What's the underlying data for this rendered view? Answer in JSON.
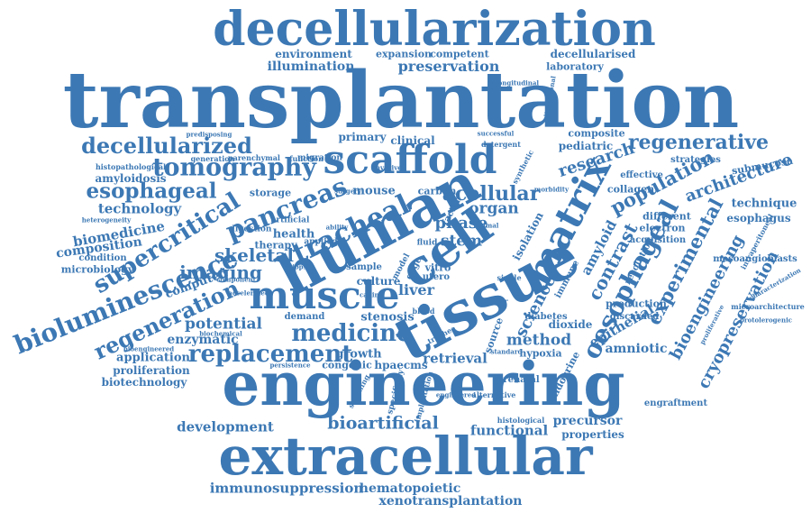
{
  "word_color": "#3c78b4",
  "words": [
    "transplantation",
    "decellularization",
    "engineering",
    "extracellular",
    "tissue",
    "human",
    "scaffold",
    "matrix",
    "cell",
    "muscle",
    "tracheal",
    "pancreas",
    "bioluminescence",
    "tomography",
    "supercritical",
    "regeneration",
    "oesophageal",
    "decellularized",
    "esophageal",
    "regenerative",
    "architecture",
    "acellular",
    "replacement",
    "medicine",
    "population",
    "experimental",
    "bioengineering",
    "cryopreservation",
    "contrast",
    "preservation",
    "illumination",
    "imaging",
    "skeletal",
    "potential",
    "enzymatic",
    "application",
    "proliferation",
    "biotechnology",
    "development",
    "bioartificial",
    "functional",
    "precursor",
    "properties",
    "immunosuppression",
    "hematopoietic",
    "xenotransplantation",
    "biomedicine",
    "technology",
    "composition",
    "microbiology",
    "research",
    "organ",
    "phase",
    "stem",
    "liver",
    "method",
    "science",
    "epithelial",
    "amniotic",
    "retrieval",
    "growth",
    "stenosis",
    "culture",
    "mouse",
    "health",
    "therapy",
    "storage",
    "computed",
    "amyloid",
    "technique",
    "esophagus",
    "submucosa",
    "collagen",
    "strategies",
    "effective",
    "pediatric",
    "composite",
    "primary",
    "clinical",
    "environment",
    "expansion",
    "competent",
    "decellularised",
    "laboratory",
    "amyloidosis",
    "histopathological",
    "source",
    "isolation",
    "different",
    "electron",
    "acquisition",
    "resolution",
    "production",
    "discarded",
    "endocrine",
    "dioxide",
    "hypoxia",
    "prenatal",
    "engraftment",
    "mesoangioblasts",
    "intraperitoneal",
    "microarchitecture",
    "characterization",
    "protolerogenic",
    "proliferative",
    "congenic",
    "hpaecms",
    "demand",
    "carbon",
    "vitro",
    "utero",
    "immune",
    "diabetes",
    "digestion",
    "condition",
    "artificial",
    "applied",
    "sample",
    "model",
    "edge",
    "fluid",
    "factor",
    "histological",
    "alternative",
    "engineered",
    "implantation",
    "specificity",
    "scanning",
    "invasive",
    "successful",
    "detergent",
    "synthetic",
    "longitudinal",
    "heterogeneity",
    "predisposing",
    "generation",
    "parenchymal",
    "function",
    "migration",
    "component",
    "accelerated",
    "biopsy",
    "biochemical",
    "bioengineered",
    "persistence",
    "standard",
    "trachea",
    "single",
    "blood",
    "canine",
    "ability",
    "surgery",
    "vascular",
    "animal",
    "morbidity",
    "dimensional"
  ]
}
